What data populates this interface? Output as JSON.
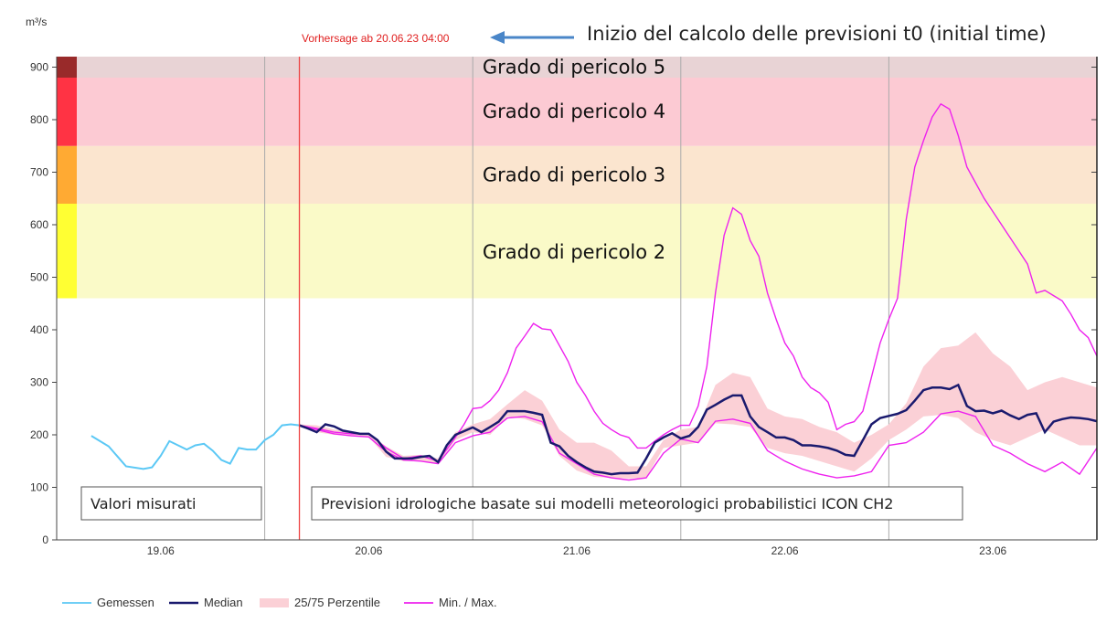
{
  "chart_data": {
    "type": "line",
    "ylabel": "m³/s",
    "ylim": [
      0,
      920
    ],
    "yticks": [
      0,
      100,
      200,
      300,
      400,
      500,
      600,
      700,
      800,
      900
    ],
    "xlim": [
      0,
      120
    ],
    "xtick_labels": [
      {
        "x": 12,
        "label": "19.06"
      },
      {
        "x": 36,
        "label": "20.06"
      },
      {
        "x": 60,
        "label": "21.06"
      },
      {
        "x": 84,
        "label": "22.06"
      },
      {
        "x": 108,
        "label": "23.06"
      }
    ],
    "day_lines": [
      24,
      48,
      72,
      96
    ],
    "forecast_x": 28,
    "forecast_label": "Vorhersage ab 20.06.23 04:00",
    "danger_levels": [
      {
        "from": 460,
        "to": 640,
        "label": "Grado di pericolo 2",
        "color": "#ffff33",
        "fill": "#fafac8"
      },
      {
        "from": 640,
        "to": 750,
        "label": "Grado di pericolo 3",
        "color": "#ffaa33",
        "fill": "#fbe5cf"
      },
      {
        "from": 750,
        "to": 880,
        "label": "Grado di pericolo 4",
        "color": "#ff3344",
        "fill": "#fccad3"
      },
      {
        "from": 880,
        "to": 920,
        "label": "Grado di pericolo 5",
        "color": "#992a2a",
        "fill": "#e8d3d5"
      }
    ],
    "annotations": {
      "initial_time": "Inizio del calcolo delle previsioni t0 (initial time)",
      "measured_box": "Valori misurati",
      "forecast_box": "Previsioni idrologiche basate sui modelli meteorologici probabilistici ICON CH2"
    },
    "series": [
      {
        "name": "Gemessen",
        "color": "#5bc8f5",
        "x": [
          4,
          6,
          8,
          10,
          11,
          12,
          13,
          14,
          15,
          16,
          17,
          18,
          19,
          20,
          21,
          22,
          23,
          24,
          25,
          26,
          27,
          28
        ],
        "y": [
          198,
          178,
          140,
          135,
          138,
          160,
          188,
          180,
          172,
          180,
          183,
          170,
          152,
          145,
          175,
          172,
          172,
          190,
          200,
          218,
          220,
          218
        ]
      },
      {
        "name": "Median",
        "color": "#1a1a6e",
        "x": [
          28,
          29,
          30,
          31,
          32,
          33,
          34,
          35,
          36,
          37,
          38,
          39,
          40,
          41,
          42,
          43,
          44,
          45,
          46,
          47,
          48,
          49,
          50,
          51,
          52,
          53,
          54,
          55,
          56,
          57,
          58,
          59,
          60,
          61,
          62,
          63,
          64,
          65,
          66,
          67,
          68,
          69,
          70,
          71,
          72,
          73,
          74,
          75,
          76,
          77,
          78,
          79,
          80,
          81,
          82,
          83,
          84,
          85,
          86,
          87,
          88,
          89,
          90,
          91,
          92,
          93,
          94,
          95,
          96,
          97,
          98,
          99,
          100,
          101,
          102,
          103,
          104,
          105,
          106,
          107,
          108,
          109,
          110,
          111,
          112,
          113,
          114,
          115,
          116,
          117,
          118,
          119,
          120
        ],
        "y": [
          218,
          212,
          205,
          220,
          216,
          208,
          205,
          202,
          202,
          190,
          168,
          155,
          155,
          155,
          158,
          160,
          148,
          180,
          200,
          207,
          214,
          205,
          215,
          225,
          245,
          245,
          245,
          242,
          238,
          185,
          178,
          160,
          148,
          138,
          130,
          128,
          125,
          127,
          127,
          128,
          155,
          185,
          195,
          203,
          193,
          198,
          215,
          248,
          257,
          267,
          275,
          275,
          235,
          215,
          205,
          195,
          195,
          190,
          180,
          180,
          178,
          175,
          170,
          162,
          160,
          190,
          220,
          232,
          236,
          240,
          247,
          265,
          285,
          290,
          290,
          287,
          295,
          255,
          245,
          246,
          241,
          246,
          237,
          230,
          238,
          241,
          205,
          225,
          230,
          233,
          232,
          230,
          226
        ]
      },
      {
        "name": "25/75 Perzentile",
        "color": "#fbd0d6",
        "x": [
          28,
          30,
          32,
          34,
          36,
          38,
          40,
          42,
          44,
          46,
          48,
          50,
          52,
          54,
          56,
          58,
          60,
          62,
          64,
          66,
          68,
          70,
          72,
          74,
          76,
          78,
          80,
          82,
          84,
          86,
          88,
          90,
          92,
          94,
          96,
          98,
          100,
          102,
          104,
          106,
          108,
          110,
          112,
          114,
          116,
          118,
          120
        ],
        "upper": [
          220,
          218,
          210,
          205,
          203,
          178,
          160,
          162,
          155,
          205,
          220,
          230,
          258,
          285,
          265,
          210,
          185,
          185,
          170,
          140,
          140,
          190,
          210,
          215,
          295,
          318,
          310,
          250,
          235,
          230,
          215,
          205,
          185,
          200,
          220,
          260,
          330,
          365,
          370,
          395,
          355,
          330,
          285,
          300,
          310,
          300,
          290
        ],
        "lower": [
          216,
          205,
          200,
          198,
          196,
          158,
          150,
          150,
          145,
          190,
          205,
          200,
          235,
          230,
          218,
          160,
          132,
          120,
          118,
          117,
          118,
          175,
          180,
          185,
          222,
          220,
          215,
          175,
          165,
          160,
          150,
          140,
          130,
          155,
          190,
          210,
          235,
          238,
          232,
          205,
          190,
          180,
          195,
          210,
          195,
          180,
          180
        ]
      },
      {
        "name": "Min. / Max.",
        "color": "#ee22ee",
        "max": {
          "x": [
            28,
            30,
            32,
            34,
            36,
            38,
            40,
            42,
            44,
            46,
            47,
            48,
            49,
            50,
            51,
            52,
            53,
            54,
            55,
            56,
            57,
            58,
            59,
            60,
            61,
            62,
            63,
            64,
            65,
            66,
            67,
            68,
            69,
            70,
            71,
            72,
            73,
            74,
            75,
            76,
            77,
            78,
            79,
            80,
            81,
            82,
            83,
            84,
            85,
            86,
            87,
            88,
            89,
            90,
            91,
            92,
            93,
            94,
            95,
            96,
            97,
            98,
            99,
            100,
            101,
            102,
            103,
            104,
            105,
            106,
            107,
            108,
            109,
            110,
            111,
            112,
            113,
            114,
            115,
            116,
            117,
            118,
            119,
            120
          ],
          "y": [
            218,
            212,
            205,
            202,
            202,
            175,
            155,
            160,
            150,
            195,
            220,
            250,
            252,
            265,
            285,
            318,
            365,
            388,
            412,
            402,
            400,
            370,
            340,
            300,
            275,
            245,
            222,
            210,
            200,
            195,
            175,
            175,
            188,
            200,
            210,
            218,
            218,
            255,
            330,
            470,
            580,
            632,
            620,
            570,
            540,
            470,
            420,
            375,
            350,
            310,
            290,
            280,
            262,
            210,
            220,
            225,
            245,
            310,
            375,
            420,
            460,
            610,
            710,
            760,
            805,
            830,
            820,
            770,
            710,
            680,
            650,
            625,
            600,
            575,
            550,
            525,
            470,
            475,
            465,
            455,
            430,
            400,
            385,
            350
          ]
        },
        "min": {
          "x": [
            28,
            30,
            32,
            34,
            36,
            38,
            40,
            42,
            44,
            46,
            48,
            50,
            52,
            54,
            56,
            58,
            60,
            62,
            64,
            66,
            68,
            70,
            72,
            74,
            76,
            78,
            80,
            82,
            84,
            86,
            88,
            90,
            92,
            94,
            96,
            98,
            100,
            102,
            104,
            106,
            108,
            110,
            112,
            114,
            116,
            118,
            120
          ],
          "y": [
            218,
            210,
            202,
            198,
            196,
            168,
            152,
            150,
            145,
            185,
            198,
            205,
            232,
            235,
            225,
            165,
            145,
            125,
            118,
            114,
            118,
            165,
            192,
            185,
            226,
            230,
            222,
            170,
            150,
            135,
            125,
            118,
            122,
            130,
            180,
            185,
            205,
            240,
            245,
            235,
            180,
            165,
            145,
            130,
            148,
            125,
            175
          ]
        }
      }
    ]
  },
  "legend": {
    "items": [
      {
        "label": "Gemessen",
        "color": "#5bc8f5",
        "kind": "line"
      },
      {
        "label": "Median",
        "color": "#1a1a6e",
        "kind": "line"
      },
      {
        "label": "25/75 Perzentile",
        "color": "#fbd0d6",
        "kind": "band"
      },
      {
        "label": "Min. / Max.",
        "color": "#ee22ee",
        "kind": "line"
      }
    ]
  }
}
